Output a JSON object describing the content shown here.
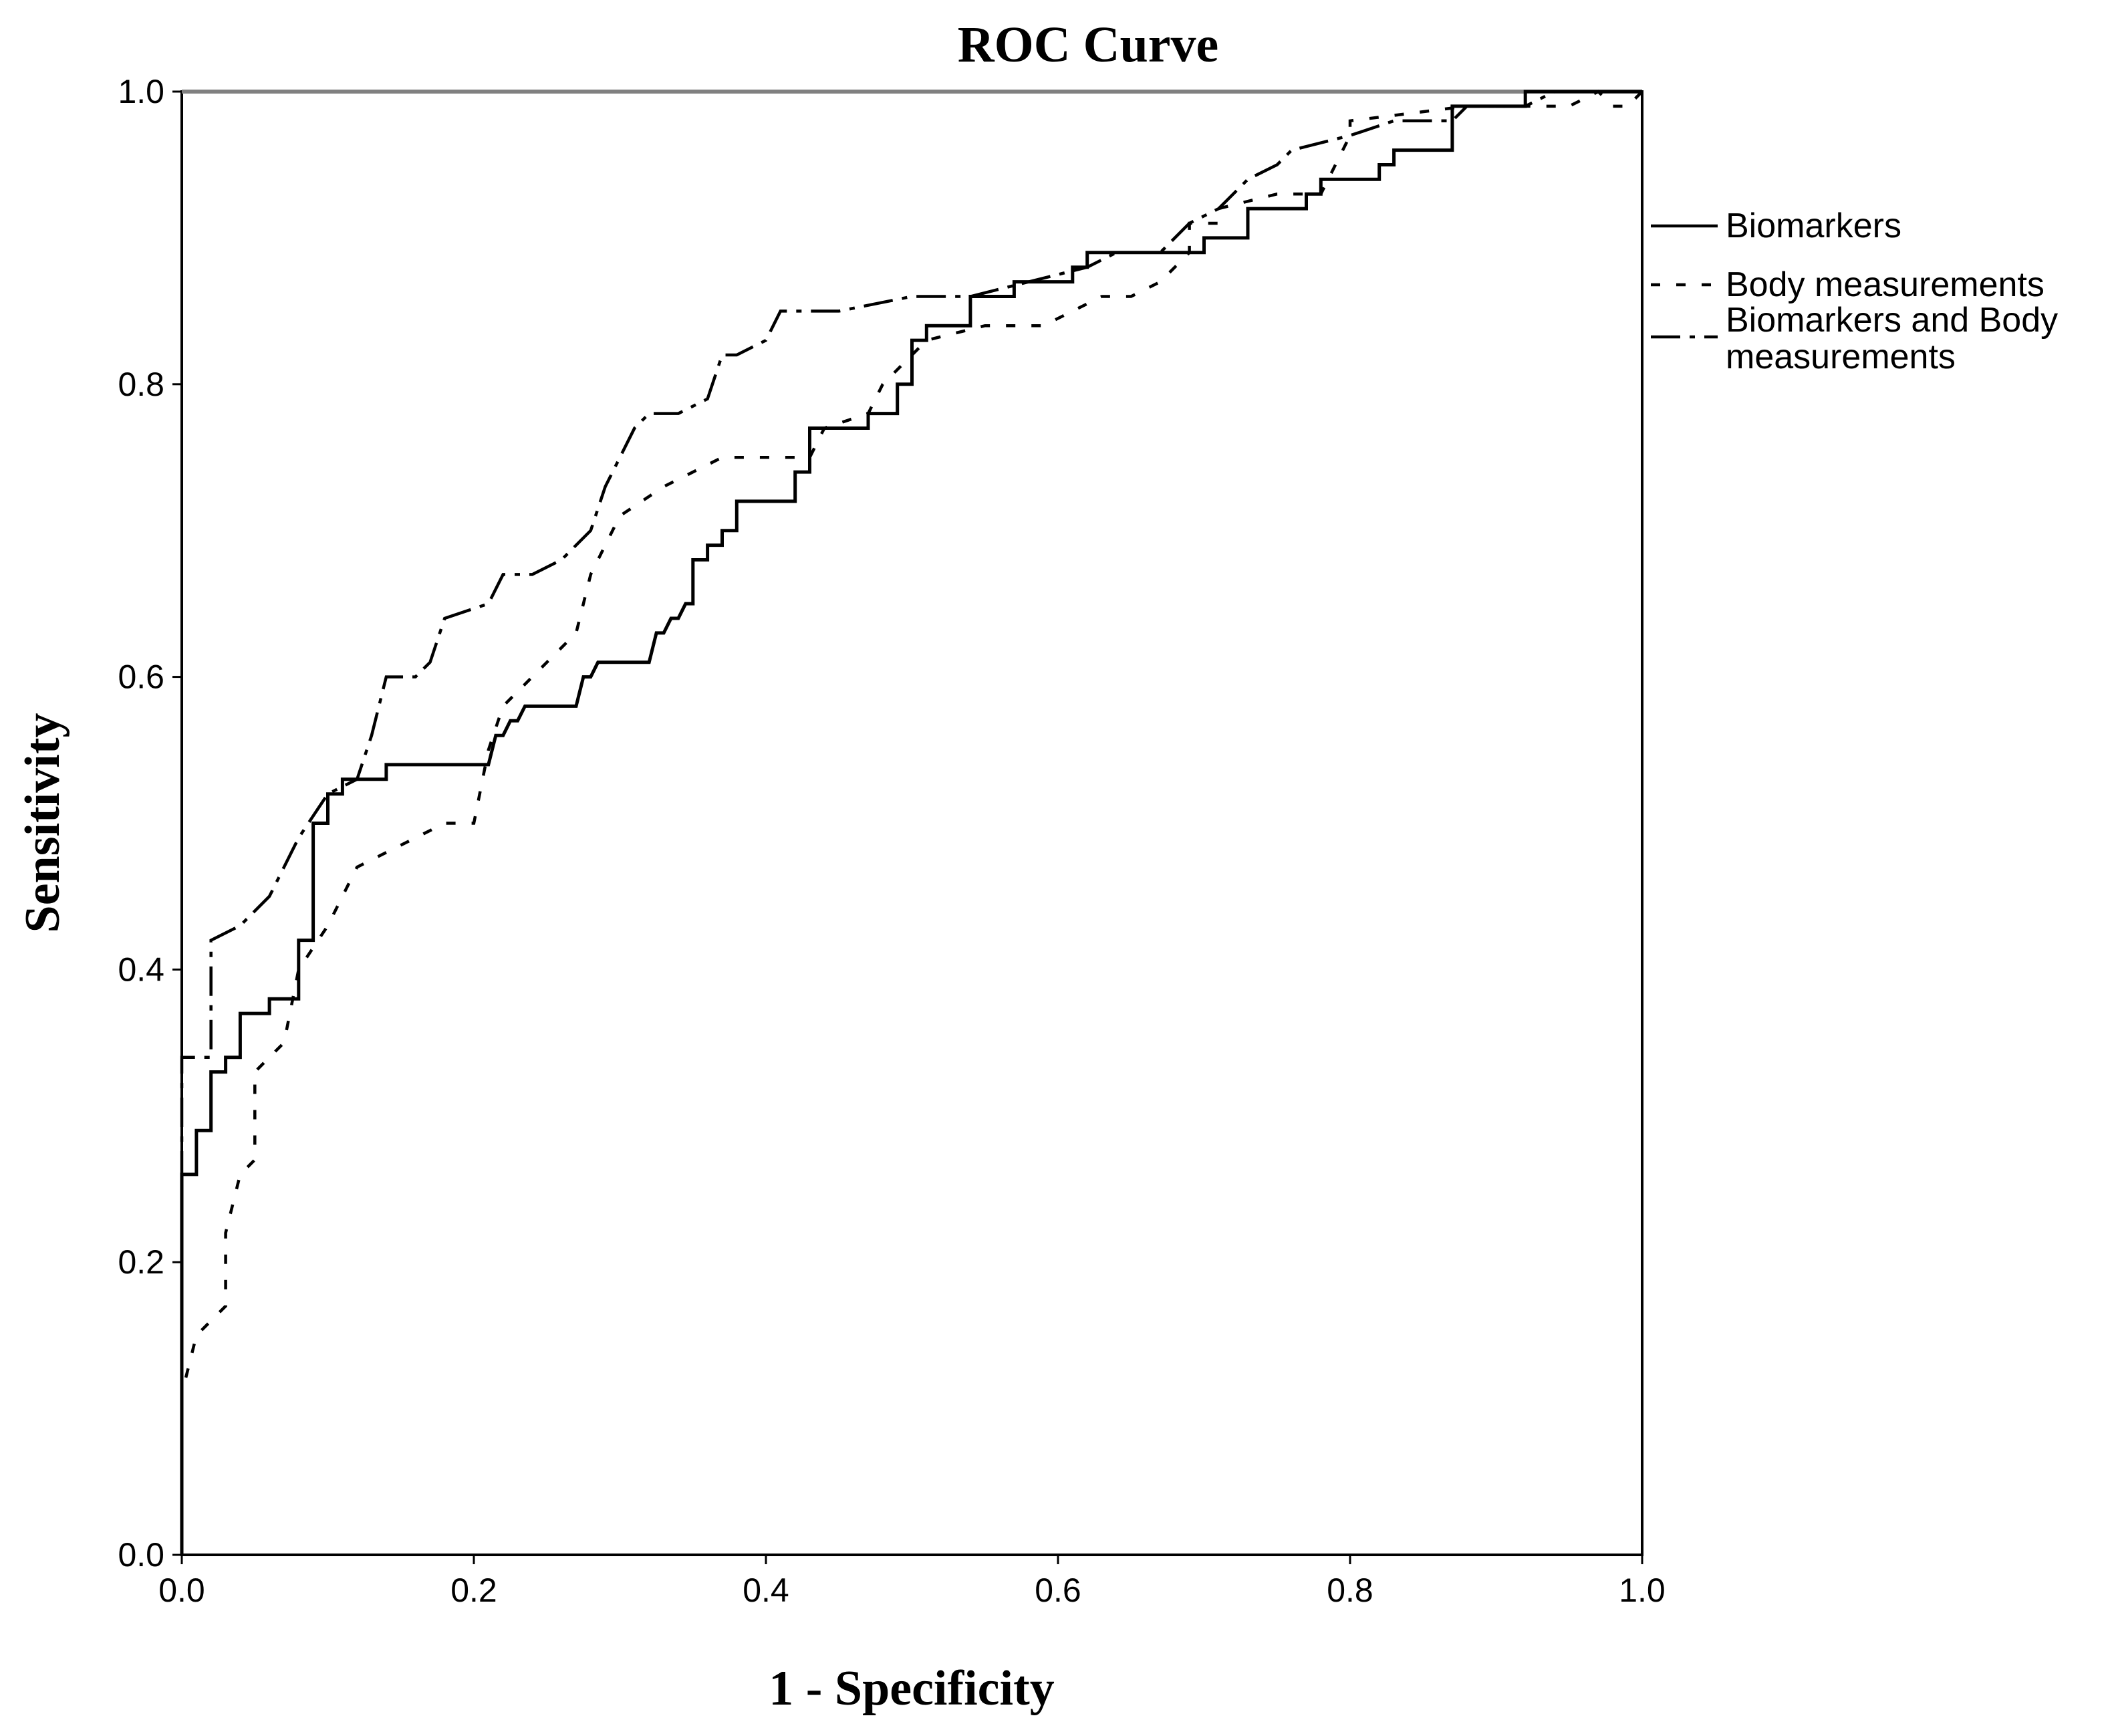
{
  "chart_data": {
    "type": "line",
    "title": "ROC Curve",
    "xlabel": "1 - Specificity",
    "ylabel": "Sensitivity",
    "xlim": [
      0,
      1
    ],
    "ylim": [
      0,
      1
    ],
    "x_ticks": [
      "0.0",
      "0.2",
      "0.4",
      "0.6",
      "0.8",
      "1.0"
    ],
    "y_ticks": [
      "0.0",
      "0.2",
      "0.4",
      "0.6",
      "0.8",
      "1.0"
    ],
    "grid": false,
    "reference_line": false,
    "legend": {
      "placement": "right",
      "entries": [
        {
          "label": "Biomarkers",
          "style": "solid"
        },
        {
          "label": "Body measurements",
          "style": "dotted"
        },
        {
          "label": "Biomarkers and Body measurements",
          "label_lines": [
            "Biomarkers and Body",
            "measurements"
          ],
          "style": "dashdot"
        }
      ]
    },
    "series": [
      {
        "name": "Biomarkers",
        "style": "solid",
        "points": [
          [
            0,
            0
          ],
          [
            0,
            0.26
          ],
          [
            0.01,
            0.26
          ],
          [
            0.01,
            0.29
          ],
          [
            0.02,
            0.29
          ],
          [
            0.02,
            0.33
          ],
          [
            0.03,
            0.33
          ],
          [
            0.03,
            0.34
          ],
          [
            0.04,
            0.34
          ],
          [
            0.04,
            0.37
          ],
          [
            0.06,
            0.37
          ],
          [
            0.06,
            0.38
          ],
          [
            0.08,
            0.38
          ],
          [
            0.08,
            0.42
          ],
          [
            0.09,
            0.42
          ],
          [
            0.09,
            0.5
          ],
          [
            0.1,
            0.5
          ],
          [
            0.1,
            0.52
          ],
          [
            0.11,
            0.52
          ],
          [
            0.11,
            0.53
          ],
          [
            0.14,
            0.53
          ],
          [
            0.14,
            0.54
          ],
          [
            0.21,
            0.54
          ],
          [
            0.215,
            0.56
          ],
          [
            0.22,
            0.56
          ],
          [
            0.225,
            0.57
          ],
          [
            0.23,
            0.57
          ],
          [
            0.235,
            0.58
          ],
          [
            0.27,
            0.58
          ],
          [
            0.275,
            0.6
          ],
          [
            0.28,
            0.6
          ],
          [
            0.285,
            0.61
          ],
          [
            0.32,
            0.61
          ],
          [
            0.325,
            0.63
          ],
          [
            0.33,
            0.63
          ],
          [
            0.335,
            0.64
          ],
          [
            0.34,
            0.64
          ],
          [
            0.345,
            0.65
          ],
          [
            0.35,
            0.65
          ],
          [
            0.35,
            0.68
          ],
          [
            0.36,
            0.68
          ],
          [
            0.36,
            0.69
          ],
          [
            0.37,
            0.69
          ],
          [
            0.37,
            0.7
          ],
          [
            0.38,
            0.7
          ],
          [
            0.38,
            0.72
          ],
          [
            0.42,
            0.72
          ],
          [
            0.42,
            0.74
          ],
          [
            0.43,
            0.74
          ],
          [
            0.43,
            0.77
          ],
          [
            0.47,
            0.77
          ],
          [
            0.47,
            0.78
          ],
          [
            0.49,
            0.78
          ],
          [
            0.49,
            0.8
          ],
          [
            0.5,
            0.8
          ],
          [
            0.5,
            0.83
          ],
          [
            0.51,
            0.83
          ],
          [
            0.51,
            0.84
          ],
          [
            0.54,
            0.84
          ],
          [
            0.54,
            0.86
          ],
          [
            0.57,
            0.86
          ],
          [
            0.57,
            0.87
          ],
          [
            0.61,
            0.87
          ],
          [
            0.61,
            0.88
          ],
          [
            0.62,
            0.88
          ],
          [
            0.62,
            0.89
          ],
          [
            0.7,
            0.89
          ],
          [
            0.7,
            0.9
          ],
          [
            0.73,
            0.9
          ],
          [
            0.73,
            0.92
          ],
          [
            0.77,
            0.92
          ],
          [
            0.77,
            0.93
          ],
          [
            0.78,
            0.93
          ],
          [
            0.78,
            0.94
          ],
          [
            0.82,
            0.94
          ],
          [
            0.82,
            0.95
          ],
          [
            0.83,
            0.95
          ],
          [
            0.83,
            0.96
          ],
          [
            0.87,
            0.96
          ],
          [
            0.87,
            0.99
          ],
          [
            0.92,
            0.99
          ],
          [
            0.92,
            1.0
          ],
          [
            1.0,
            1.0
          ]
        ]
      },
      {
        "name": "Body measurements",
        "style": "dotted",
        "points": [
          [
            0,
            0
          ],
          [
            0,
            0.11
          ],
          [
            0.01,
            0.15
          ],
          [
            0.02,
            0.16
          ],
          [
            0.03,
            0.17
          ],
          [
            0.03,
            0.22
          ],
          [
            0.04,
            0.26
          ],
          [
            0.05,
            0.27
          ],
          [
            0.05,
            0.33
          ],
          [
            0.06,
            0.34
          ],
          [
            0.07,
            0.35
          ],
          [
            0.08,
            0.4
          ],
          [
            0.1,
            0.43
          ],
          [
            0.12,
            0.47
          ],
          [
            0.14,
            0.48
          ],
          [
            0.18,
            0.5
          ],
          [
            0.2,
            0.5
          ],
          [
            0.21,
            0.55
          ],
          [
            0.22,
            0.58
          ],
          [
            0.25,
            0.61
          ],
          [
            0.27,
            0.63
          ],
          [
            0.28,
            0.67
          ],
          [
            0.29,
            0.69
          ],
          [
            0.3,
            0.71
          ],
          [
            0.33,
            0.73
          ],
          [
            0.37,
            0.75
          ],
          [
            0.4,
            0.75
          ],
          [
            0.43,
            0.75
          ],
          [
            0.44,
            0.77
          ],
          [
            0.47,
            0.78
          ],
          [
            0.48,
            0.8
          ],
          [
            0.5,
            0.82
          ],
          [
            0.51,
            0.83
          ],
          [
            0.55,
            0.84
          ],
          [
            0.59,
            0.84
          ],
          [
            0.61,
            0.85
          ],
          [
            0.63,
            0.86
          ],
          [
            0.65,
            0.86
          ],
          [
            0.67,
            0.87
          ],
          [
            0.69,
            0.89
          ],
          [
            0.69,
            0.91
          ],
          [
            0.71,
            0.91
          ],
          [
            0.71,
            0.92
          ],
          [
            0.75,
            0.93
          ],
          [
            0.78,
            0.93
          ],
          [
            0.8,
            0.97
          ],
          [
            0.8,
            0.98
          ],
          [
            0.88,
            0.99
          ],
          [
            0.95,
            0.99
          ],
          [
            0.97,
            1.0
          ],
          [
            0.98,
            0.99
          ],
          [
            0.99,
            0.99
          ],
          [
            1.0,
            1.0
          ]
        ]
      },
      {
        "name": "Biomarkers and Body measurements",
        "style": "dashdot",
        "points": [
          [
            0,
            0
          ],
          [
            0,
            0.34
          ],
          [
            0.02,
            0.34
          ],
          [
            0.02,
            0.42
          ],
          [
            0.04,
            0.43
          ],
          [
            0.06,
            0.45
          ],
          [
            0.08,
            0.49
          ],
          [
            0.1,
            0.52
          ],
          [
            0.12,
            0.53
          ],
          [
            0.13,
            0.56
          ],
          [
            0.14,
            0.6
          ],
          [
            0.16,
            0.6
          ],
          [
            0.17,
            0.61
          ],
          [
            0.18,
            0.64
          ],
          [
            0.21,
            0.65
          ],
          [
            0.22,
            0.67
          ],
          [
            0.24,
            0.67
          ],
          [
            0.26,
            0.68
          ],
          [
            0.28,
            0.7
          ],
          [
            0.29,
            0.73
          ],
          [
            0.3,
            0.75
          ],
          [
            0.31,
            0.77
          ],
          [
            0.32,
            0.78
          ],
          [
            0.34,
            0.78
          ],
          [
            0.36,
            0.79
          ],
          [
            0.37,
            0.82
          ],
          [
            0.38,
            0.82
          ],
          [
            0.4,
            0.83
          ],
          [
            0.41,
            0.85
          ],
          [
            0.45,
            0.85
          ],
          [
            0.5,
            0.86
          ],
          [
            0.54,
            0.86
          ],
          [
            0.58,
            0.87
          ],
          [
            0.62,
            0.88
          ],
          [
            0.64,
            0.89
          ],
          [
            0.67,
            0.89
          ],
          [
            0.69,
            0.91
          ],
          [
            0.71,
            0.92
          ],
          [
            0.73,
            0.94
          ],
          [
            0.75,
            0.95
          ],
          [
            0.76,
            0.96
          ],
          [
            0.8,
            0.97
          ],
          [
            0.83,
            0.98
          ],
          [
            0.87,
            0.98
          ],
          [
            0.88,
            0.99
          ],
          [
            0.92,
            0.99
          ],
          [
            0.94,
            1.0
          ],
          [
            1.0,
            1.0
          ]
        ]
      }
    ]
  }
}
